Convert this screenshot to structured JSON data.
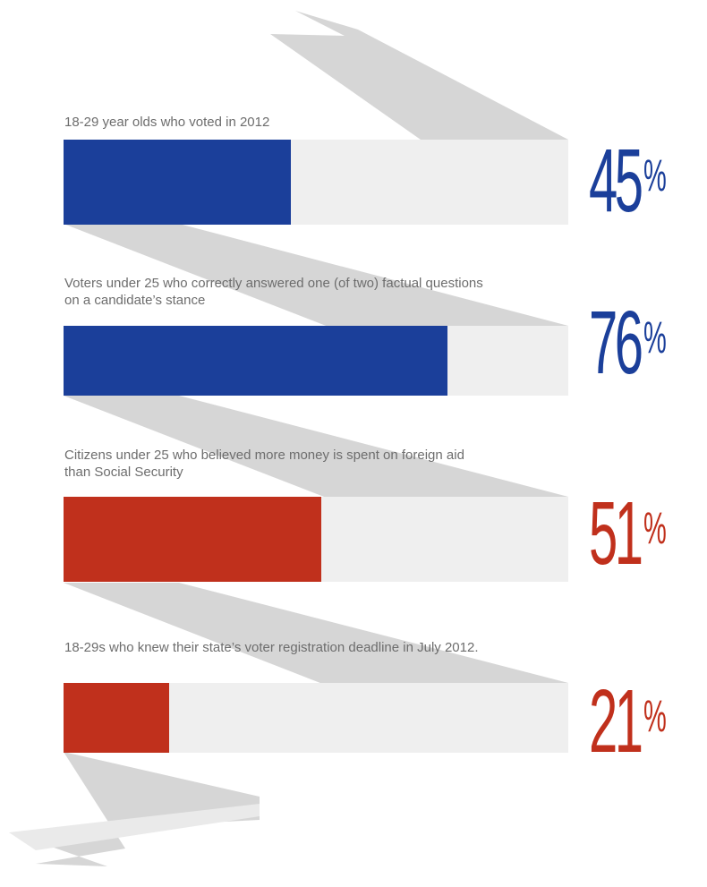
{
  "chart_data": {
    "type": "bar",
    "orientation": "horizontal",
    "xlim": [
      0,
      100
    ],
    "unit": "%",
    "rows": [
      {
        "label": "18-29 year olds who voted in 2012",
        "value": 45,
        "display": "45",
        "color": "#1b3f9a"
      },
      {
        "label": "Voters under 25 who correctly answered one (of two) factual questions on a candidate’s stance",
        "value": 76,
        "display": "76",
        "color": "#1b3f9a"
      },
      {
        "label": "Citizens under 25 who believed more money is spent on foreign aid than Social Security",
        "value": 51,
        "display": "51",
        "color": "#c0301c"
      },
      {
        "label": "18-29s who knew their state’s voter registration deadline in July 2012.",
        "value": 21,
        "display": "21",
        "color": "#c0301c"
      }
    ]
  },
  "colors": {
    "track": "#efefef",
    "ribbon": "#d8d8d8",
    "label_text": "#6d6d6d"
  }
}
